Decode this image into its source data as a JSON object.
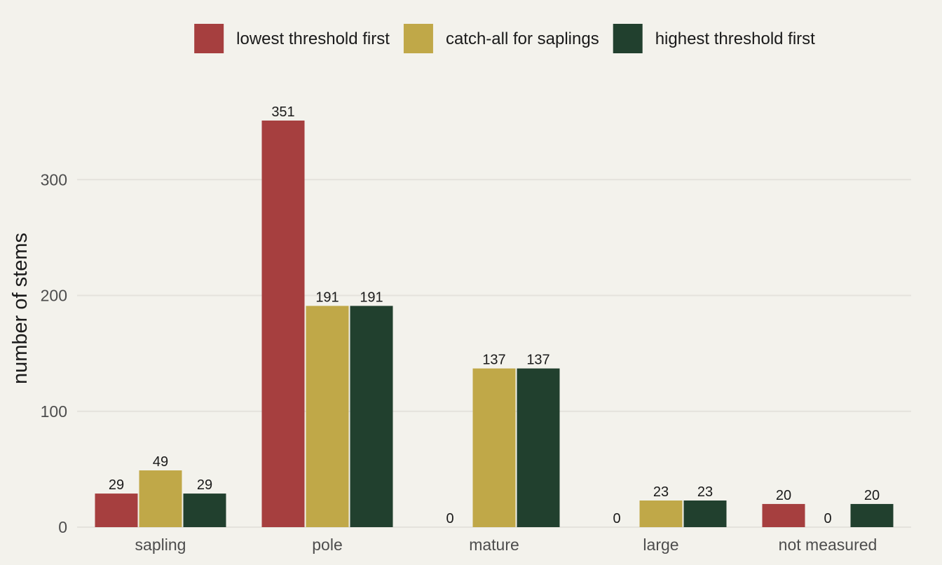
{
  "chart_data": {
    "type": "bar",
    "title": "",
    "xlabel": "",
    "ylabel": "number of stems",
    "categories": [
      "sapling",
      "pole",
      "mature",
      "large",
      "not measured"
    ],
    "series": [
      {
        "name": "lowest threshold first",
        "color": "#a63f3f",
        "values": [
          29,
          351,
          0,
          0,
          20
        ]
      },
      {
        "name": "catch-all for saplings",
        "color": "#c0a848",
        "values": [
          49,
          191,
          137,
          23,
          0
        ]
      },
      {
        "name": "highest threshold first",
        "color": "#21402e",
        "values": [
          29,
          191,
          137,
          23,
          20
        ]
      }
    ],
    "ylim": [
      0,
      380
    ],
    "yticks": [
      0,
      100,
      200,
      300
    ],
    "grid": true,
    "legend_position": "top"
  }
}
